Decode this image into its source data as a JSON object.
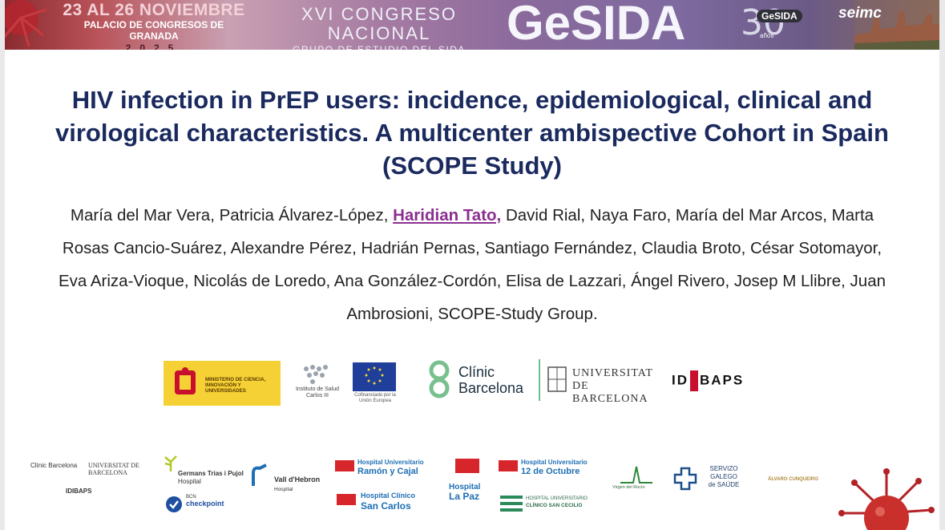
{
  "banner": {
    "dates_line1": "23 AL 26 NOVIEMBRE",
    "dates_line2": "PALACIO DE CONGRESOS DE GRANADA",
    "dates_line3": "2025",
    "congress_line1": "XVI CONGRESO NACIONAL",
    "congress_line2": "GRUPO DE ESTUDIO DEL SIDA",
    "brand": "GeSIDA",
    "anniversary_number": "30",
    "anniversary_badge": "GeSIDA",
    "anniversary_label": "años",
    "seimc": "seimc"
  },
  "title": "HIV infection in PrEP users: incidence, epidemiological, clinical and virological characteristics. A multicenter ambispective Cohort in Spain (SCOPE Study)",
  "authors": {
    "before": "María del Mar Vera, Patricia Álvarez-López, ",
    "presenter": "Haridian Tato,",
    "after": " David Rial, Naya Faro, María del Mar Arcos, Marta Rosas Cancio-Suárez, Alexandre Pérez, Hadrián Pernas, Santiago Fernández, Claudia Broto, César Sotomayor, Eva Ariza-Vioque, Nicolás de Loredo, Ana González-Cordón, Elisa de Lazzari, Ángel Rivero, Josep M Llibre, Juan Ambrosioni, SCOPE-Study Group."
  },
  "logos_top": {
    "ministerio": "MINISTERIO DE CIENCIA, INNOVACIÓN Y UNIVERSIDADES",
    "isciii": "Instituto de Salud Carlos III",
    "eu": "Cofinanciado por la Unión Europea",
    "clinic_line1": "Clínic",
    "clinic_line2": "Barcelona",
    "ub_line1": "UNIVERSITAT DE",
    "ub_line2": "BARCELONA",
    "idibaps_left": "ID",
    "idibaps_right": "BAPS"
  },
  "logos_bottom": {
    "clinic_small": "Clínic Barcelona",
    "ub_small": "UNIVERSITAT DE BARCELONA",
    "idibaps_small": "IDIBAPS",
    "gtp_line1": "Germans Trias i Pujol",
    "gtp_line2": "Hospital",
    "bcn_line1": "BCN",
    "bcn_line2": "checkpoint",
    "vall_line1": "Vall d'Hebron",
    "vall_line2": "Hospital",
    "rcajal_line1": "Hospital Universitario",
    "rcajal_line2": "Ramón y Cajal",
    "sancarlos_line1": "Hospital Clínico",
    "sancarlos_line2": "San Carlos",
    "lapaz_line1": "Hospital",
    "lapaz_line2": "La Paz",
    "doce_line1": "Hospital Universitario",
    "doce_line2": "12 de Octubre",
    "cecilio_line1": "HOSPITAL UNIVERSITARIO",
    "cecilio_line2": "CLÍNICO SAN CECILIO",
    "rocio": "Virgen del Rocío",
    "sergas_line1": "SERVIZO",
    "sergas_line2": "GALEGO",
    "sergas_line3": "de SAÚDE",
    "cunqueiro": "ÁLVARO CUNQUEIRO"
  }
}
